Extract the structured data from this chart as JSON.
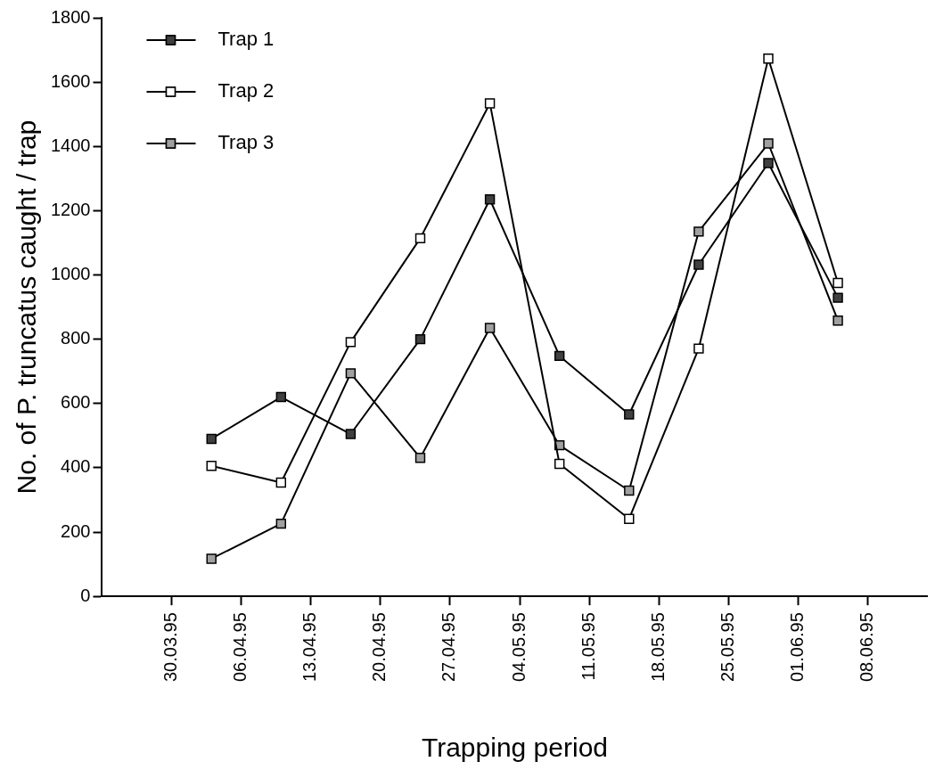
{
  "chart_data": {
    "type": "line",
    "xlabel": "Trapping period",
    "ylabel": "No. of P. truncatus caught / trap",
    "x": [
      "1995-04-03",
      "1995-04-10",
      "1995-04-17",
      "1995-04-24",
      "1995-05-01",
      "1995-05-08",
      "1995-05-15",
      "1995-05-22",
      "1995-05-29",
      "1995-06-05"
    ],
    "series": [
      {
        "name": "Trap 1",
        "color": "#404040",
        "values": [
          490,
          620,
          505,
          800,
          1235,
          748,
          566,
          1032,
          1348,
          929
        ]
      },
      {
        "name": "Trap 2",
        "color": "#ffffff",
        "values": [
          406,
          354,
          791,
          1114,
          1534,
          412,
          241,
          771,
          1673,
          975
        ]
      },
      {
        "name": "Trap 3",
        "color": "#a0a0a0",
        "values": [
          117,
          226,
          694,
          431,
          835,
          470,
          329,
          1135,
          1409,
          858
        ]
      }
    ],
    "xlim": [
      "1995-03-23",
      "1995-06-14"
    ],
    "xticks": [
      {
        "value": "1995-03-30",
        "label": "30.03.95"
      },
      {
        "value": "1995-04-06",
        "label": "06.04.95"
      },
      {
        "value": "1995-04-13",
        "label": "13.04.95"
      },
      {
        "value": "1995-04-20",
        "label": "20.04.95"
      },
      {
        "value": "1995-04-27",
        "label": "27.04.95"
      },
      {
        "value": "1995-05-04",
        "label": "04.05.95"
      },
      {
        "value": "1995-05-11",
        "label": "11.05.95"
      },
      {
        "value": "1995-05-18",
        "label": "18.05.95"
      },
      {
        "value": "1995-05-25",
        "label": "25.05.95"
      },
      {
        "value": "1995-06-01",
        "label": "01.06.95"
      },
      {
        "value": "1995-06-08",
        "label": "08.06.95"
      }
    ],
    "ylim": [
      0,
      1800
    ],
    "yticks": [
      0,
      200,
      400,
      600,
      800,
      1000,
      1200,
      1400,
      1600,
      1800
    ],
    "grid": false,
    "legend": "top left",
    "marker": "square",
    "line_style": "solid"
  }
}
